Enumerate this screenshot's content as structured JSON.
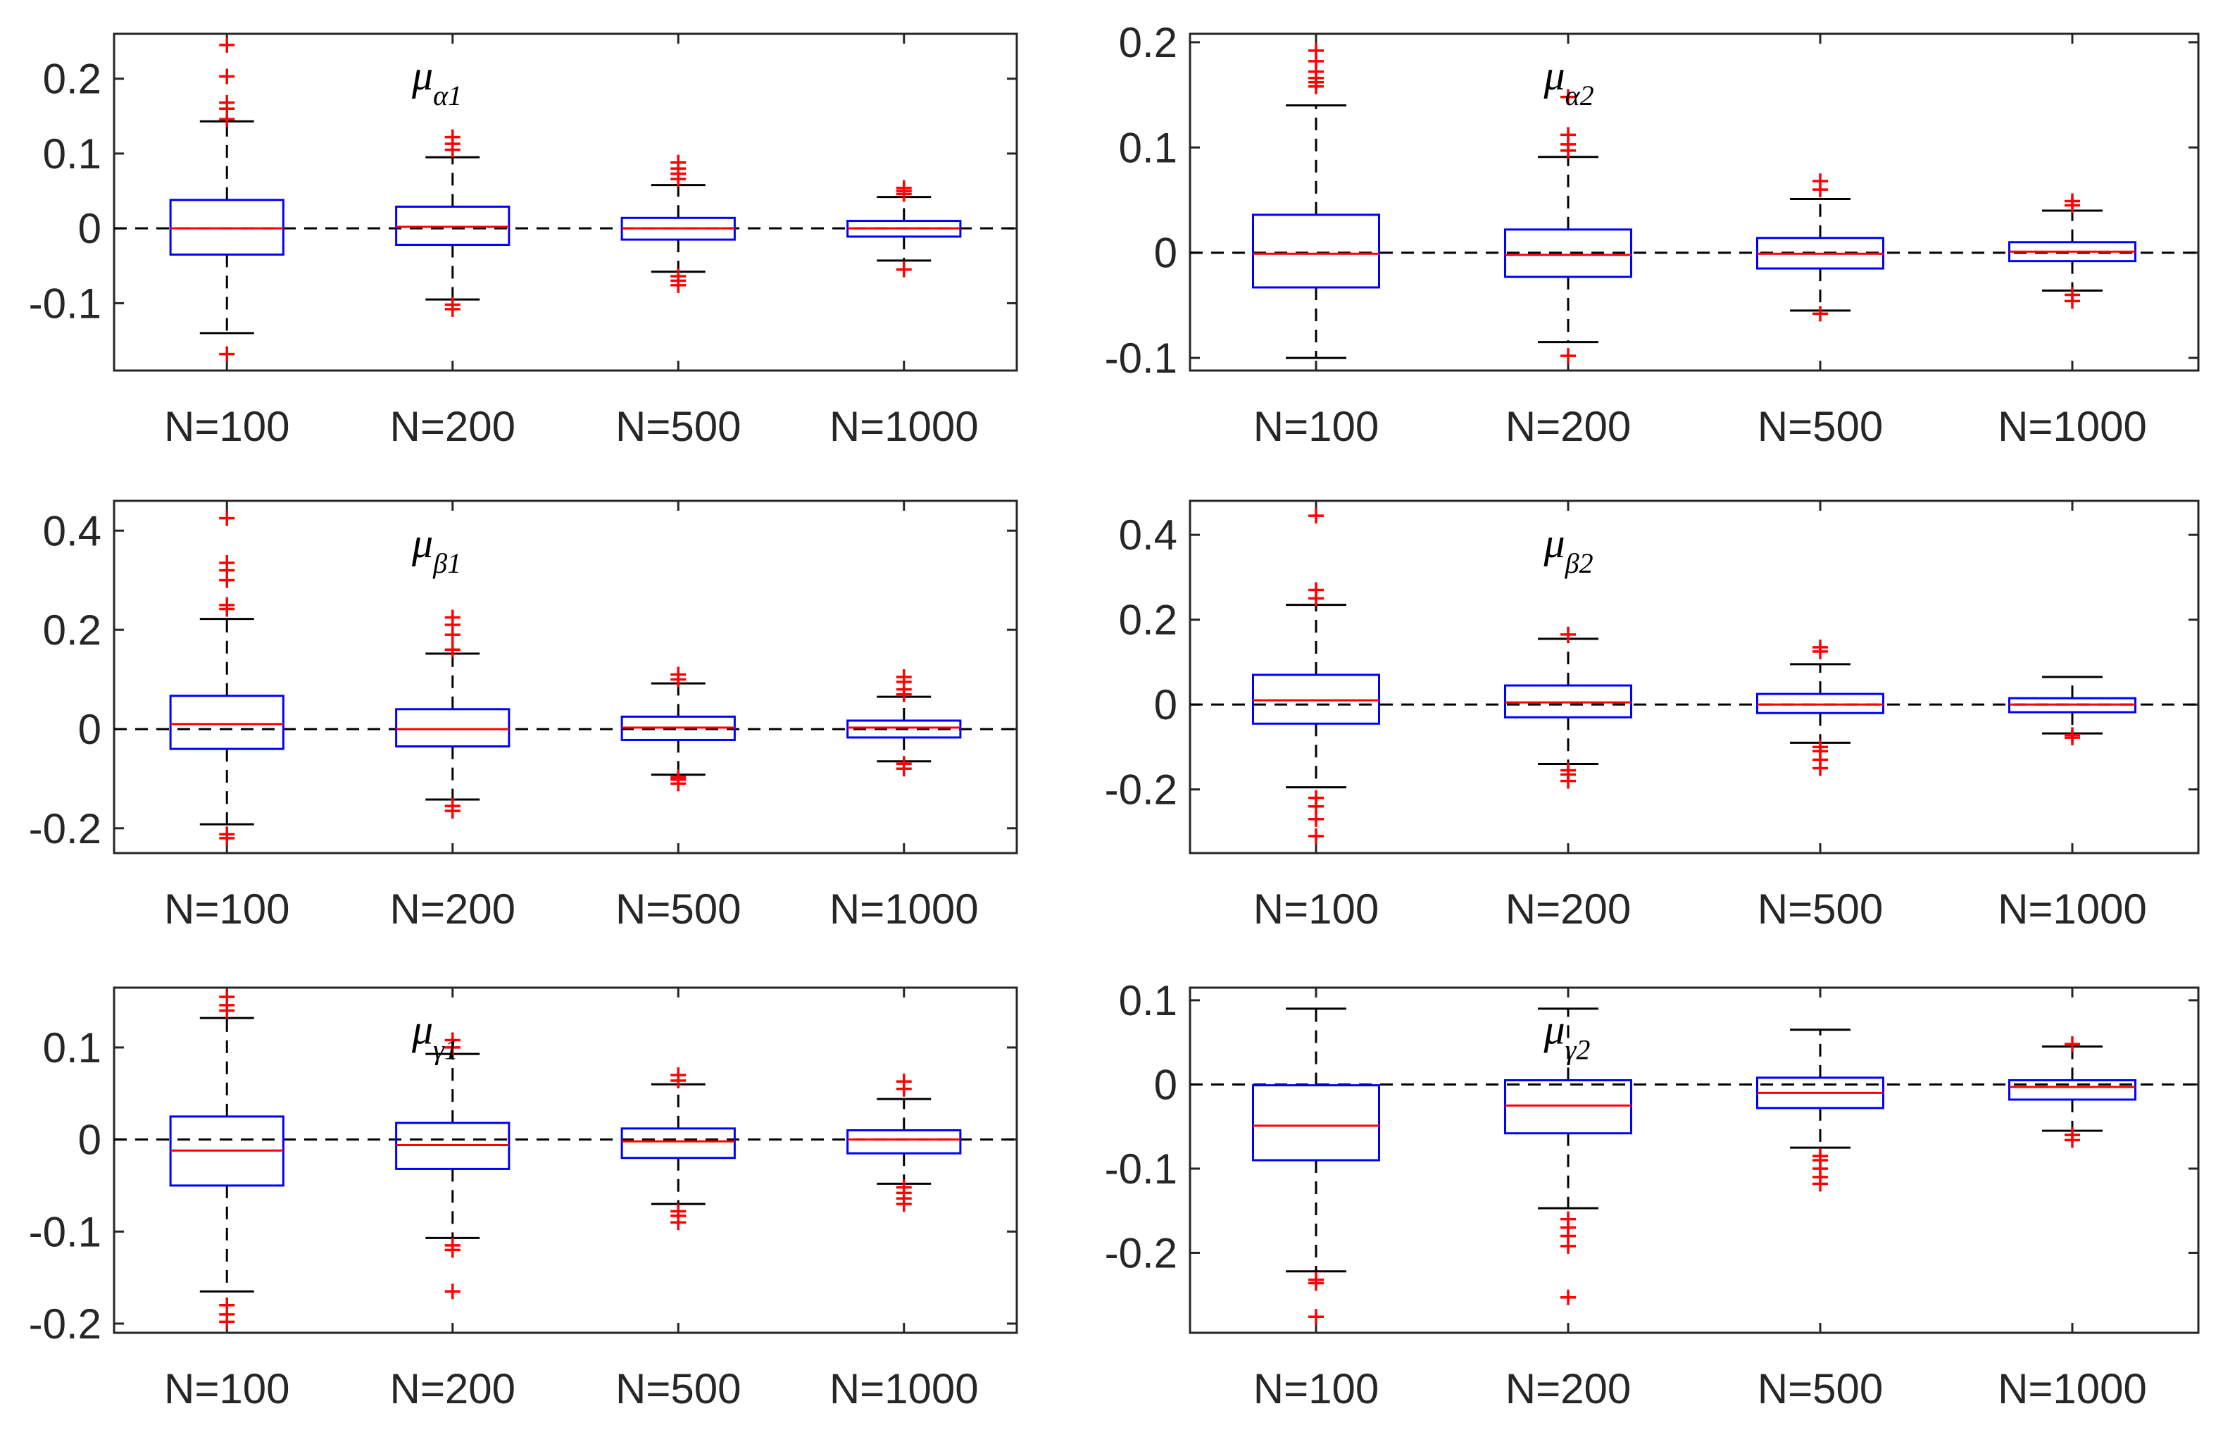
{
  "colors": {
    "box": "#0000ff",
    "median": "#ff0000",
    "outlier": "#ff0000",
    "whisker": "#000000",
    "axis": "#262626",
    "zero_line": "#000000"
  },
  "chart_data": [
    {
      "type": "box",
      "title": {
        "main": "μ",
        "sub": "α1"
      },
      "categories": [
        "N=100",
        "N=200",
        "N=500",
        "N=1000"
      ],
      "ylim": [
        -0.19,
        0.26
      ],
      "yticks": [
        -0.1,
        0,
        0.1,
        0.2
      ],
      "ytick_labels": [
        "-0.1",
        "0",
        "0.1",
        "0.2"
      ],
      "reference_line": 0,
      "boxes": [
        {
          "q1": -0.035,
          "median": 0.0,
          "q3": 0.038,
          "whisker_low": -0.14,
          "whisker_high": 0.143,
          "outliers": [
            0.146,
            0.16,
            0.168,
            0.203,
            0.245,
            -0.168
          ]
        },
        {
          "q1": -0.022,
          "median": 0.002,
          "q3": 0.029,
          "whisker_low": -0.095,
          "whisker_high": 0.095,
          "outliers": [
            0.105,
            0.113,
            0.122,
            -0.102,
            -0.108
          ]
        },
        {
          "q1": -0.015,
          "median": 0.0,
          "q3": 0.014,
          "whisker_low": -0.058,
          "whisker_high": 0.058,
          "outliers": [
            0.066,
            0.073,
            0.08,
            0.088,
            -0.064,
            -0.07,
            -0.076
          ]
        },
        {
          "q1": -0.011,
          "median": 0.0,
          "q3": 0.01,
          "whisker_low": -0.043,
          "whisker_high": 0.042,
          "outliers": [
            0.046,
            0.05,
            0.054,
            -0.055
          ]
        }
      ]
    },
    {
      "type": "box",
      "title": {
        "main": "μ",
        "sub": "α2"
      },
      "categories": [
        "N=100",
        "N=200",
        "N=500",
        "N=1000"
      ],
      "ylim": [
        -0.112,
        0.208
      ],
      "yticks": [
        -0.1,
        0,
        0.1,
        0.2
      ],
      "ytick_labels": [
        "-0.1",
        "0",
        "0.1",
        "0.2"
      ],
      "reference_line": 0,
      "boxes": [
        {
          "q1": -0.033,
          "median": -0.001,
          "q3": 0.036,
          "whisker_low": -0.1,
          "whisker_high": 0.14,
          "outliers": [
            0.158,
            0.162,
            0.166,
            0.172,
            0.182,
            0.192
          ]
        },
        {
          "q1": -0.023,
          "median": -0.002,
          "q3": 0.022,
          "whisker_low": -0.085,
          "whisker_high": 0.091,
          "outliers": [
            0.097,
            0.103,
            0.112,
            0.148,
            -0.098
          ]
        },
        {
          "q1": -0.015,
          "median": -0.001,
          "q3": 0.014,
          "whisker_low": -0.055,
          "whisker_high": 0.051,
          "outliers": [
            0.06,
            0.068,
            -0.058
          ]
        },
        {
          "q1": -0.008,
          "median": 0.001,
          "q3": 0.01,
          "whisker_low": -0.036,
          "whisker_high": 0.04,
          "outliers": [
            0.045,
            0.049,
            -0.04,
            -0.046
          ]
        }
      ]
    },
    {
      "type": "box",
      "title": {
        "main": "μ",
        "sub": "β1"
      },
      "categories": [
        "N=100",
        "N=200",
        "N=500",
        "N=1000"
      ],
      "ylim": [
        -0.25,
        0.46
      ],
      "yticks": [
        -0.2,
        0,
        0.2,
        0.4
      ],
      "ytick_labels": [
        "-0.2",
        "0",
        "0.2",
        "0.4"
      ],
      "reference_line": 0,
      "boxes": [
        {
          "q1": -0.04,
          "median": 0.01,
          "q3": 0.067,
          "whisker_low": -0.192,
          "whisker_high": 0.222,
          "outliers": [
            0.242,
            0.25,
            0.3,
            0.32,
            0.335,
            0.425,
            -0.212,
            -0.22
          ]
        },
        {
          "q1": -0.035,
          "median": 0.0,
          "q3": 0.04,
          "whisker_low": -0.142,
          "whisker_high": 0.152,
          "outliers": [
            0.16,
            0.19,
            0.21,
            0.225,
            -0.155,
            -0.165
          ]
        },
        {
          "q1": -0.022,
          "median": 0.003,
          "q3": 0.025,
          "whisker_low": -0.092,
          "whisker_high": 0.092,
          "outliers": [
            0.1,
            0.11,
            -0.097,
            -0.102,
            -0.11
          ]
        },
        {
          "q1": -0.017,
          "median": 0.003,
          "q3": 0.017,
          "whisker_low": -0.065,
          "whisker_high": 0.065,
          "outliers": [
            0.07,
            0.08,
            0.095,
            0.105,
            -0.07,
            -0.08
          ]
        }
      ]
    },
    {
      "type": "box",
      "title": {
        "main": "μ",
        "sub": "β2"
      },
      "categories": [
        "N=100",
        "N=200",
        "N=500",
        "N=1000"
      ],
      "ylim": [
        -0.35,
        0.48
      ],
      "yticks": [
        -0.2,
        0,
        0.2,
        0.4
      ],
      "ytick_labels": [
        "-0.2",
        "0",
        "0.2",
        "0.4"
      ],
      "reference_line": 0,
      "boxes": [
        {
          "q1": -0.045,
          "median": 0.01,
          "q3": 0.07,
          "whisker_low": -0.195,
          "whisker_high": 0.235,
          "outliers": [
            0.25,
            0.27,
            0.445,
            -0.22,
            -0.24,
            -0.27,
            -0.31
          ]
        },
        {
          "q1": -0.03,
          "median": 0.005,
          "q3": 0.045,
          "whisker_low": -0.14,
          "whisker_high": 0.155,
          "outliers": [
            0.165,
            -0.155,
            -0.165,
            -0.18
          ]
        },
        {
          "q1": -0.02,
          "median": 0.0,
          "q3": 0.025,
          "whisker_low": -0.09,
          "whisker_high": 0.095,
          "outliers": [
            0.125,
            0.135,
            -0.1,
            -0.11,
            -0.13,
            -0.15
          ]
        },
        {
          "q1": -0.018,
          "median": 0.0,
          "q3": 0.015,
          "whisker_low": -0.068,
          "whisker_high": 0.065,
          "outliers": [
            -0.072,
            -0.078
          ]
        }
      ]
    },
    {
      "type": "box",
      "title": {
        "main": "μ",
        "sub": "γ1"
      },
      "categories": [
        "N=100",
        "N=200",
        "N=500",
        "N=1000"
      ],
      "ylim": [
        -0.21,
        0.165
      ],
      "yticks": [
        -0.2,
        -0.1,
        0,
        0.1
      ],
      "ytick_labels": [
        "-0.2",
        "-0.1",
        "0",
        "0.1"
      ],
      "reference_line": 0,
      "boxes": [
        {
          "q1": -0.05,
          "median": -0.012,
          "q3": 0.025,
          "whisker_low": -0.165,
          "whisker_high": 0.132,
          "outliers": [
            0.14,
            0.146,
            0.155,
            -0.18,
            -0.19,
            -0.198
          ]
        },
        {
          "q1": -0.032,
          "median": -0.006,
          "q3": 0.018,
          "whisker_low": -0.107,
          "whisker_high": 0.093,
          "outliers": [
            0.1,
            0.108,
            -0.115,
            -0.12,
            -0.165
          ]
        },
        {
          "q1": -0.02,
          "median": -0.002,
          "q3": 0.012,
          "whisker_low": -0.07,
          "whisker_high": 0.06,
          "outliers": [
            0.064,
            0.07,
            -0.078,
            -0.083,
            -0.09
          ]
        },
        {
          "q1": -0.015,
          "median": 0.0,
          "q3": 0.01,
          "whisker_low": -0.048,
          "whisker_high": 0.044,
          "outliers": [
            0.055,
            0.063,
            -0.052,
            -0.058,
            -0.064,
            -0.07
          ]
        }
      ]
    },
    {
      "type": "box",
      "title": {
        "main": "μ",
        "sub": "γ2"
      },
      "categories": [
        "N=100",
        "N=200",
        "N=500",
        "N=1000"
      ],
      "ylim": [
        -0.295,
        0.115
      ],
      "yticks": [
        -0.2,
        -0.1,
        0,
        0.1
      ],
      "ytick_labels": [
        "-0.2",
        "-0.1",
        "0",
        "0.1"
      ],
      "reference_line": 0,
      "boxes": [
        {
          "q1": -0.09,
          "median": -0.049,
          "q3": -0.001,
          "whisker_low": -0.222,
          "whisker_high": 0.09,
          "outliers": [
            -0.232,
            -0.236,
            -0.276
          ]
        },
        {
          "q1": -0.058,
          "median": -0.025,
          "q3": 0.005,
          "whisker_low": -0.147,
          "whisker_high": 0.09,
          "outliers": [
            -0.16,
            -0.17,
            -0.18,
            -0.192,
            -0.253
          ]
        },
        {
          "q1": -0.028,
          "median": -0.01,
          "q3": 0.008,
          "whisker_low": -0.075,
          "whisker_high": 0.065,
          "outliers": [
            -0.085,
            -0.09,
            -0.1,
            -0.11,
            -0.118
          ]
        },
        {
          "q1": -0.018,
          "median": -0.003,
          "q3": 0.005,
          "whisker_low": -0.055,
          "whisker_high": 0.045,
          "outliers": [
            0.048,
            -0.06,
            -0.066
          ]
        }
      ]
    }
  ]
}
